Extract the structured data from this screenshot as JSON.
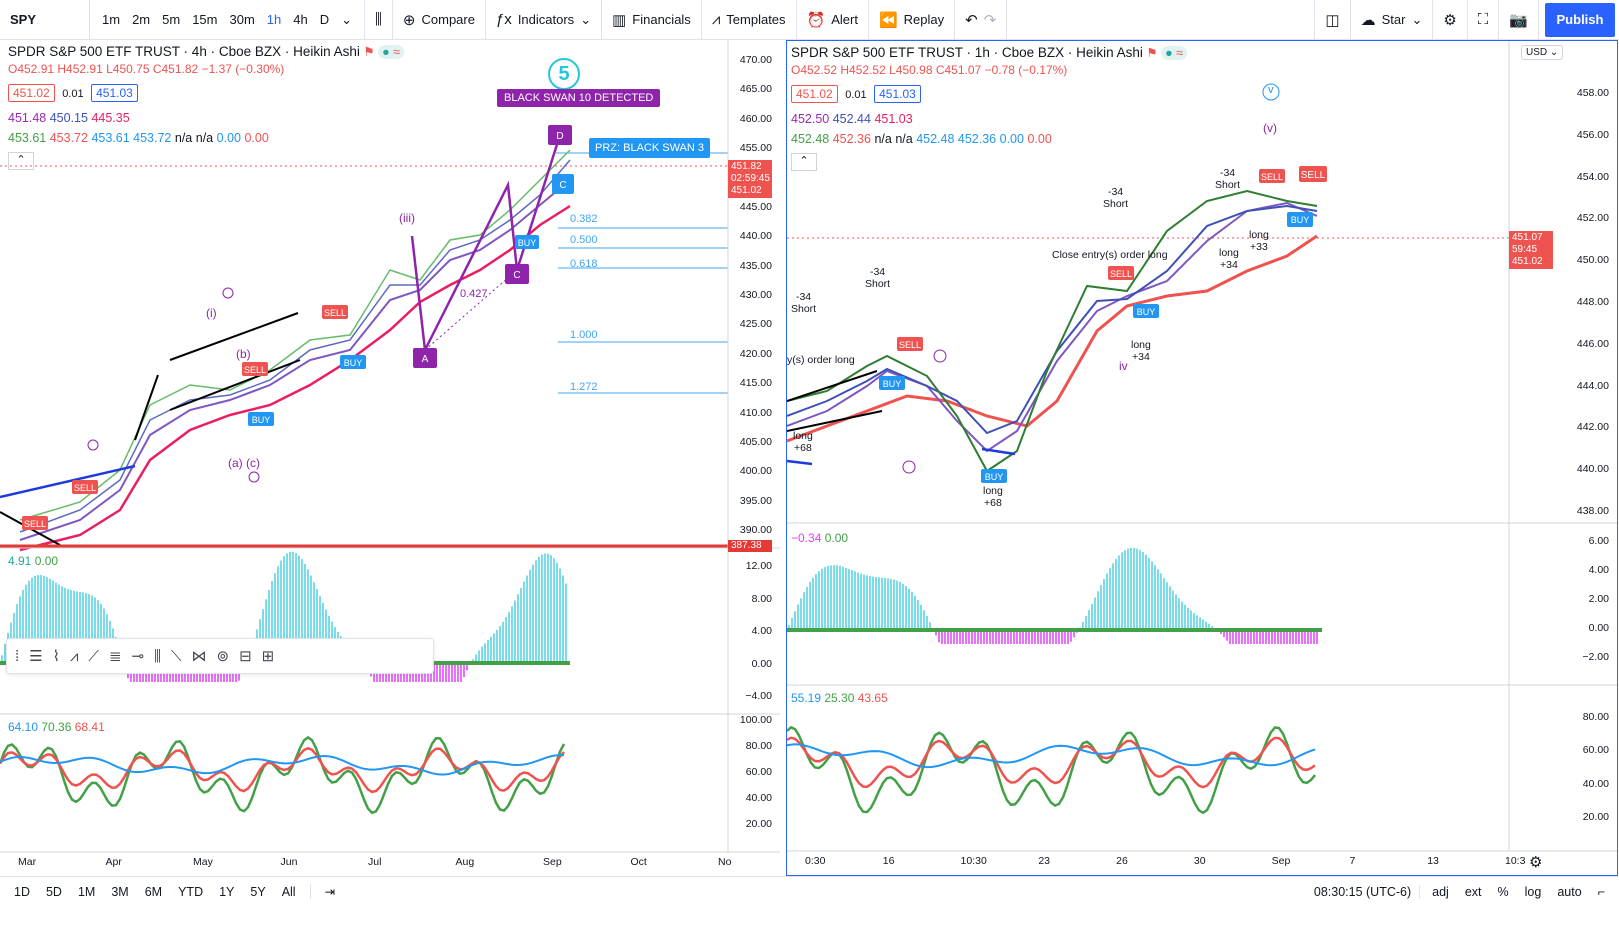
{
  "toolbar": {
    "symbol": "SPY",
    "intervals": [
      "1m",
      "2m",
      "5m",
      "15m",
      "30m",
      "1h",
      "4h",
      "D"
    ],
    "active_interval": "1h",
    "compare": "Compare",
    "indicators": "Indicators",
    "financials": "Financials",
    "templates": "Templates",
    "alert": "Alert",
    "replay": "Replay",
    "layout_name": "Star",
    "publish": "Publish"
  },
  "left": {
    "title": "SPDR S&P 500 ETF TRUST · 4h · Cboe BZX · Heikin Ashi",
    "ohlc": {
      "o": "O452.91",
      "h": "H452.91",
      "l": "L450.75",
      "c": "C451.82",
      "chg": "−1.37 (−0.30%)"
    },
    "bid": "451.02",
    "spread": "0.01",
    "ask": "451.03",
    "ind1": [
      "451.48",
      "450.15",
      "445.35"
    ],
    "ind2": [
      "453.61",
      "453.72",
      "453.61",
      "453.72",
      "n/a",
      "n/a",
      "0.00",
      "0.00"
    ],
    "wave_label": "5",
    "black_swan": "BLACK SWAN 10 DETECTED",
    "prz": "PRZ: BLACK SWAN 3",
    "fib": [
      "0.382",
      "0.500",
      "0.618",
      "1.000",
      "1.272"
    ],
    "fib_mid": "0.427",
    "price_tag": "451.82",
    "price_time": "02:59:45",
    "bid_tag": "451.02",
    "red_tag": "387.38",
    "yaxis": [
      "470.00",
      "465.00",
      "460.00",
      "455.00",
      "450.00",
      "445.00",
      "440.00",
      "435.00",
      "430.00",
      "425.00",
      "420.00",
      "415.00",
      "410.00",
      "405.00",
      "400.00",
      "395.00",
      "390.00"
    ],
    "osc_vals": [
      "4.91",
      "0.00"
    ],
    "osc_axis": [
      "12.00",
      "8.00",
      "4.00",
      "0.00",
      "−4.00"
    ],
    "rsi_vals": [
      "64.10",
      "70.36",
      "68.41"
    ],
    "rsi_axis": [
      "100.00",
      "80.00",
      "60.00",
      "40.00",
      "20.00"
    ],
    "xaxis": [
      "Mar",
      "Apr",
      "May",
      "Jun",
      "Jul",
      "Aug",
      "Sep",
      "Oct",
      "No"
    ]
  },
  "right": {
    "title": "SPDR S&P 500 ETF TRUST · 1h · Cboe BZX · Heikin Ashi",
    "ohlc": {
      "o": "O452.52",
      "h": "H452.52",
      "l": "L450.98",
      "c": "C451.07",
      "chg": "−0.78 (−0.17%)"
    },
    "bid": "451.02",
    "spread": "0.01",
    "ask": "451.03",
    "ind1": [
      "452.50",
      "452.44",
      "451.03"
    ],
    "ind2": [
      "452.48",
      "452.36",
      "n/a",
      "n/a",
      "452.48",
      "452.36",
      "0.00",
      "0.00"
    ],
    "currency": "USD",
    "labels": {
      "short1": "-34",
      "short_word": "Short",
      "long_word": "long",
      "long68": "+68",
      "long34": "+34",
      "long33": "+33",
      "close_order": "Close entry(s) order long",
      "order_long": "y(s) order long",
      "iv": "iv",
      "v": "v",
      "vp": "(v)"
    },
    "price_tag": "451.07",
    "price_time": "59:45",
    "bid_tag": "451.02",
    "yaxis": [
      "458.00",
      "456.00",
      "454.00",
      "452.00",
      "450.00",
      "448.00",
      "446.00",
      "444.00",
      "442.00",
      "440.00",
      "438.00"
    ],
    "osc_vals": [
      "−0.34",
      "0.00"
    ],
    "osc_axis": [
      "6.00",
      "4.00",
      "2.00",
      "0.00",
      "−2.00"
    ],
    "rsi_vals": [
      "55.19",
      "25.30",
      "43.65"
    ],
    "rsi_axis": [
      "80.00",
      "60.00",
      "40.00",
      "20.00"
    ],
    "xaxis": [
      "0:30",
      "16",
      "10:30",
      "23",
      "26",
      "30",
      "Sep",
      "7",
      "13",
      "10:3"
    ]
  },
  "bottom": {
    "ranges": [
      "1D",
      "5D",
      "1M",
      "3M",
      "6M",
      "YTD",
      "1Y",
      "5Y",
      "All"
    ],
    "time": "08:30:15 (UTC-6)",
    "opts": [
      "adj",
      "ext",
      "%",
      "log",
      "auto"
    ]
  },
  "colors": {
    "accent": "#2962ff",
    "up": "#26a69a",
    "down": "#ef5350",
    "purple": "#9c27b0",
    "green": "#43a047",
    "cyan": "#4dd0e1"
  }
}
